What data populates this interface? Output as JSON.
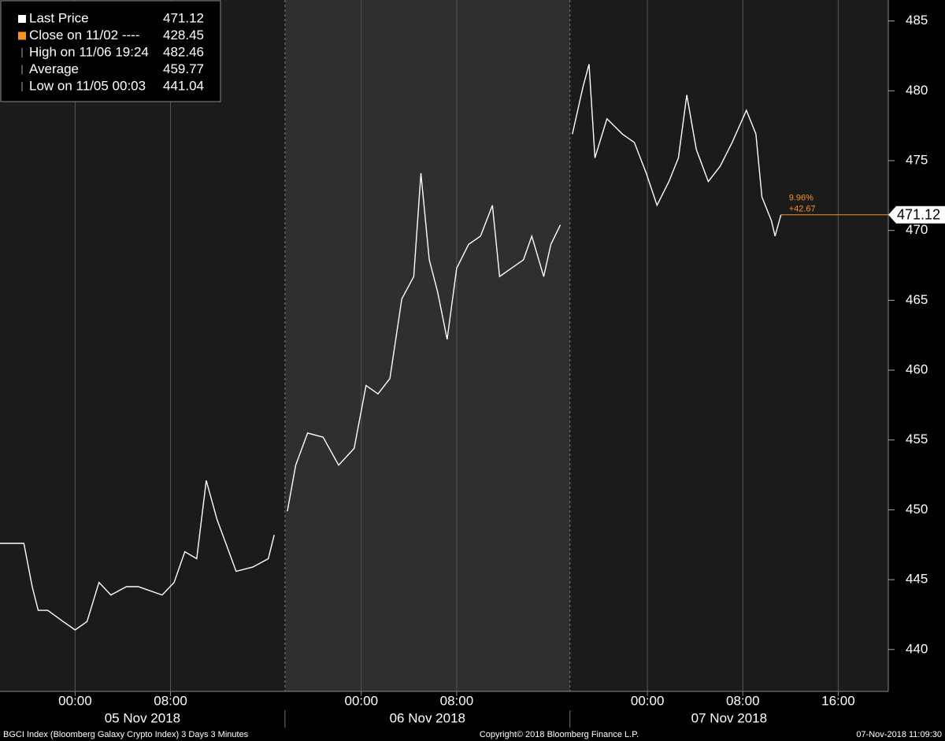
{
  "chart_data": {
    "type": "line",
    "xlim": [
      -6.3,
      68.2
    ],
    "ylim": [
      437,
      486.5
    ],
    "yticks": [
      440,
      445,
      450,
      455,
      460,
      465,
      470,
      475,
      480,
      485
    ],
    "xticks": [
      {
        "value": 0,
        "label": "00:00"
      },
      {
        "value": 8,
        "label": "08:00"
      },
      {
        "value": 24,
        "label": "00:00"
      },
      {
        "value": 32,
        "label": "08:00"
      },
      {
        "value": 48,
        "label": "00:00"
      },
      {
        "value": 56,
        "label": "08:00"
      },
      {
        "value": 64,
        "label": "16:00"
      }
    ],
    "grid": true,
    "date_bands": [
      {
        "label": "05 Nov 2018",
        "start": -6.3,
        "end": 17.6,
        "color": "#1b1b1b"
      },
      {
        "label": "06 Nov 2018",
        "start": 17.6,
        "end": 41.5,
        "color": "#2f2f2f"
      },
      {
        "label": "07 Nov 2018",
        "start": 41.5,
        "end": 68.2,
        "color": "#1b1b1b"
      }
    ],
    "series": [
      {
        "name": "Last Price",
        "color": "#ffffff",
        "x": [
          -6.3,
          -5.3,
          -4.3,
          -3.6,
          -3.1,
          -2.3,
          -1.0,
          0,
          1.0,
          2.0,
          3.0,
          4.3,
          5.3,
          6.3,
          7.3,
          8.3,
          9.2,
          10.2,
          11.0,
          11.9,
          12.9,
          13.5,
          14.9,
          16.2,
          16.7,
          17.2,
          17.8,
          18.5,
          19.5,
          20.8,
          22.1,
          23.4,
          24.4,
          25.4,
          26.4,
          27.4,
          28.4,
          29.0,
          29.7,
          30.4,
          31.2,
          32.0,
          33.0,
          34.0,
          35.0,
          35.6,
          36.6,
          37.6,
          38.3,
          39.3,
          39.9,
          40.7,
          41.2,
          41.7,
          42.6,
          43.1,
          43.6,
          44.6,
          45.9,
          46.9,
          47.9,
          48.8,
          49.8,
          50.6,
          51.3,
          52.1,
          53.1,
          54.1,
          55.1,
          56.3,
          57.1,
          57.6,
          58.4,
          58.7,
          59.2
        ],
        "values": [
          447.6,
          447.6,
          447.6,
          444.5,
          442.8,
          442.8,
          442.0,
          441.4,
          442.0,
          444.8,
          443.9,
          444.5,
          444.5,
          444.2,
          443.9,
          444.8,
          447.0,
          446.5,
          452.1,
          449.3,
          447.0,
          445.6,
          445.9,
          446.5,
          448.2,
          null,
          449.9,
          453.2,
          455.5,
          455.2,
          453.2,
          454.4,
          458.9,
          458.3,
          459.4,
          465.1,
          466.7,
          474.1,
          467.9,
          465.6,
          462.2,
          467.3,
          469.0,
          469.6,
          471.8,
          466.7,
          467.3,
          467.9,
          469.6,
          466.7,
          469.0,
          470.4,
          null,
          476.9,
          480.3,
          481.9,
          475.2,
          478.0,
          476.9,
          476.3,
          474.1,
          471.8,
          473.5,
          475.2,
          479.7,
          475.8,
          473.5,
          474.6,
          476.3,
          478.6,
          476.9,
          472.4,
          470.7,
          469.6,
          471.12
        ]
      }
    ],
    "legend": [
      {
        "name": "Last Price",
        "value": 471.12,
        "color": "#ffffff"
      },
      {
        "name": "Close on 11/02 ----",
        "value": 428.45,
        "color": "#f7941d"
      },
      {
        "name": "High on 11/06 19:24",
        "value": 482.46,
        "color": "#aaaaaa"
      },
      {
        "name": "Average",
        "value": 459.77,
        "color": "#aaaaaa"
      },
      {
        "name": "Low on 11/05 00:03",
        "value": 441.04,
        "color": "#aaaaaa"
      }
    ],
    "change_percent": "9.96%",
    "change_net": "+42.67",
    "change_color": "#f7941d",
    "footer_left": "BGCI Index (Bloomberg Galaxy Crypto Index) 3 Days 3 Minutes",
    "footer_center": "Copyright© 2018 Bloomberg Finance L.P.",
    "footer_right": "07-Nov-2018 11:09:30"
  }
}
